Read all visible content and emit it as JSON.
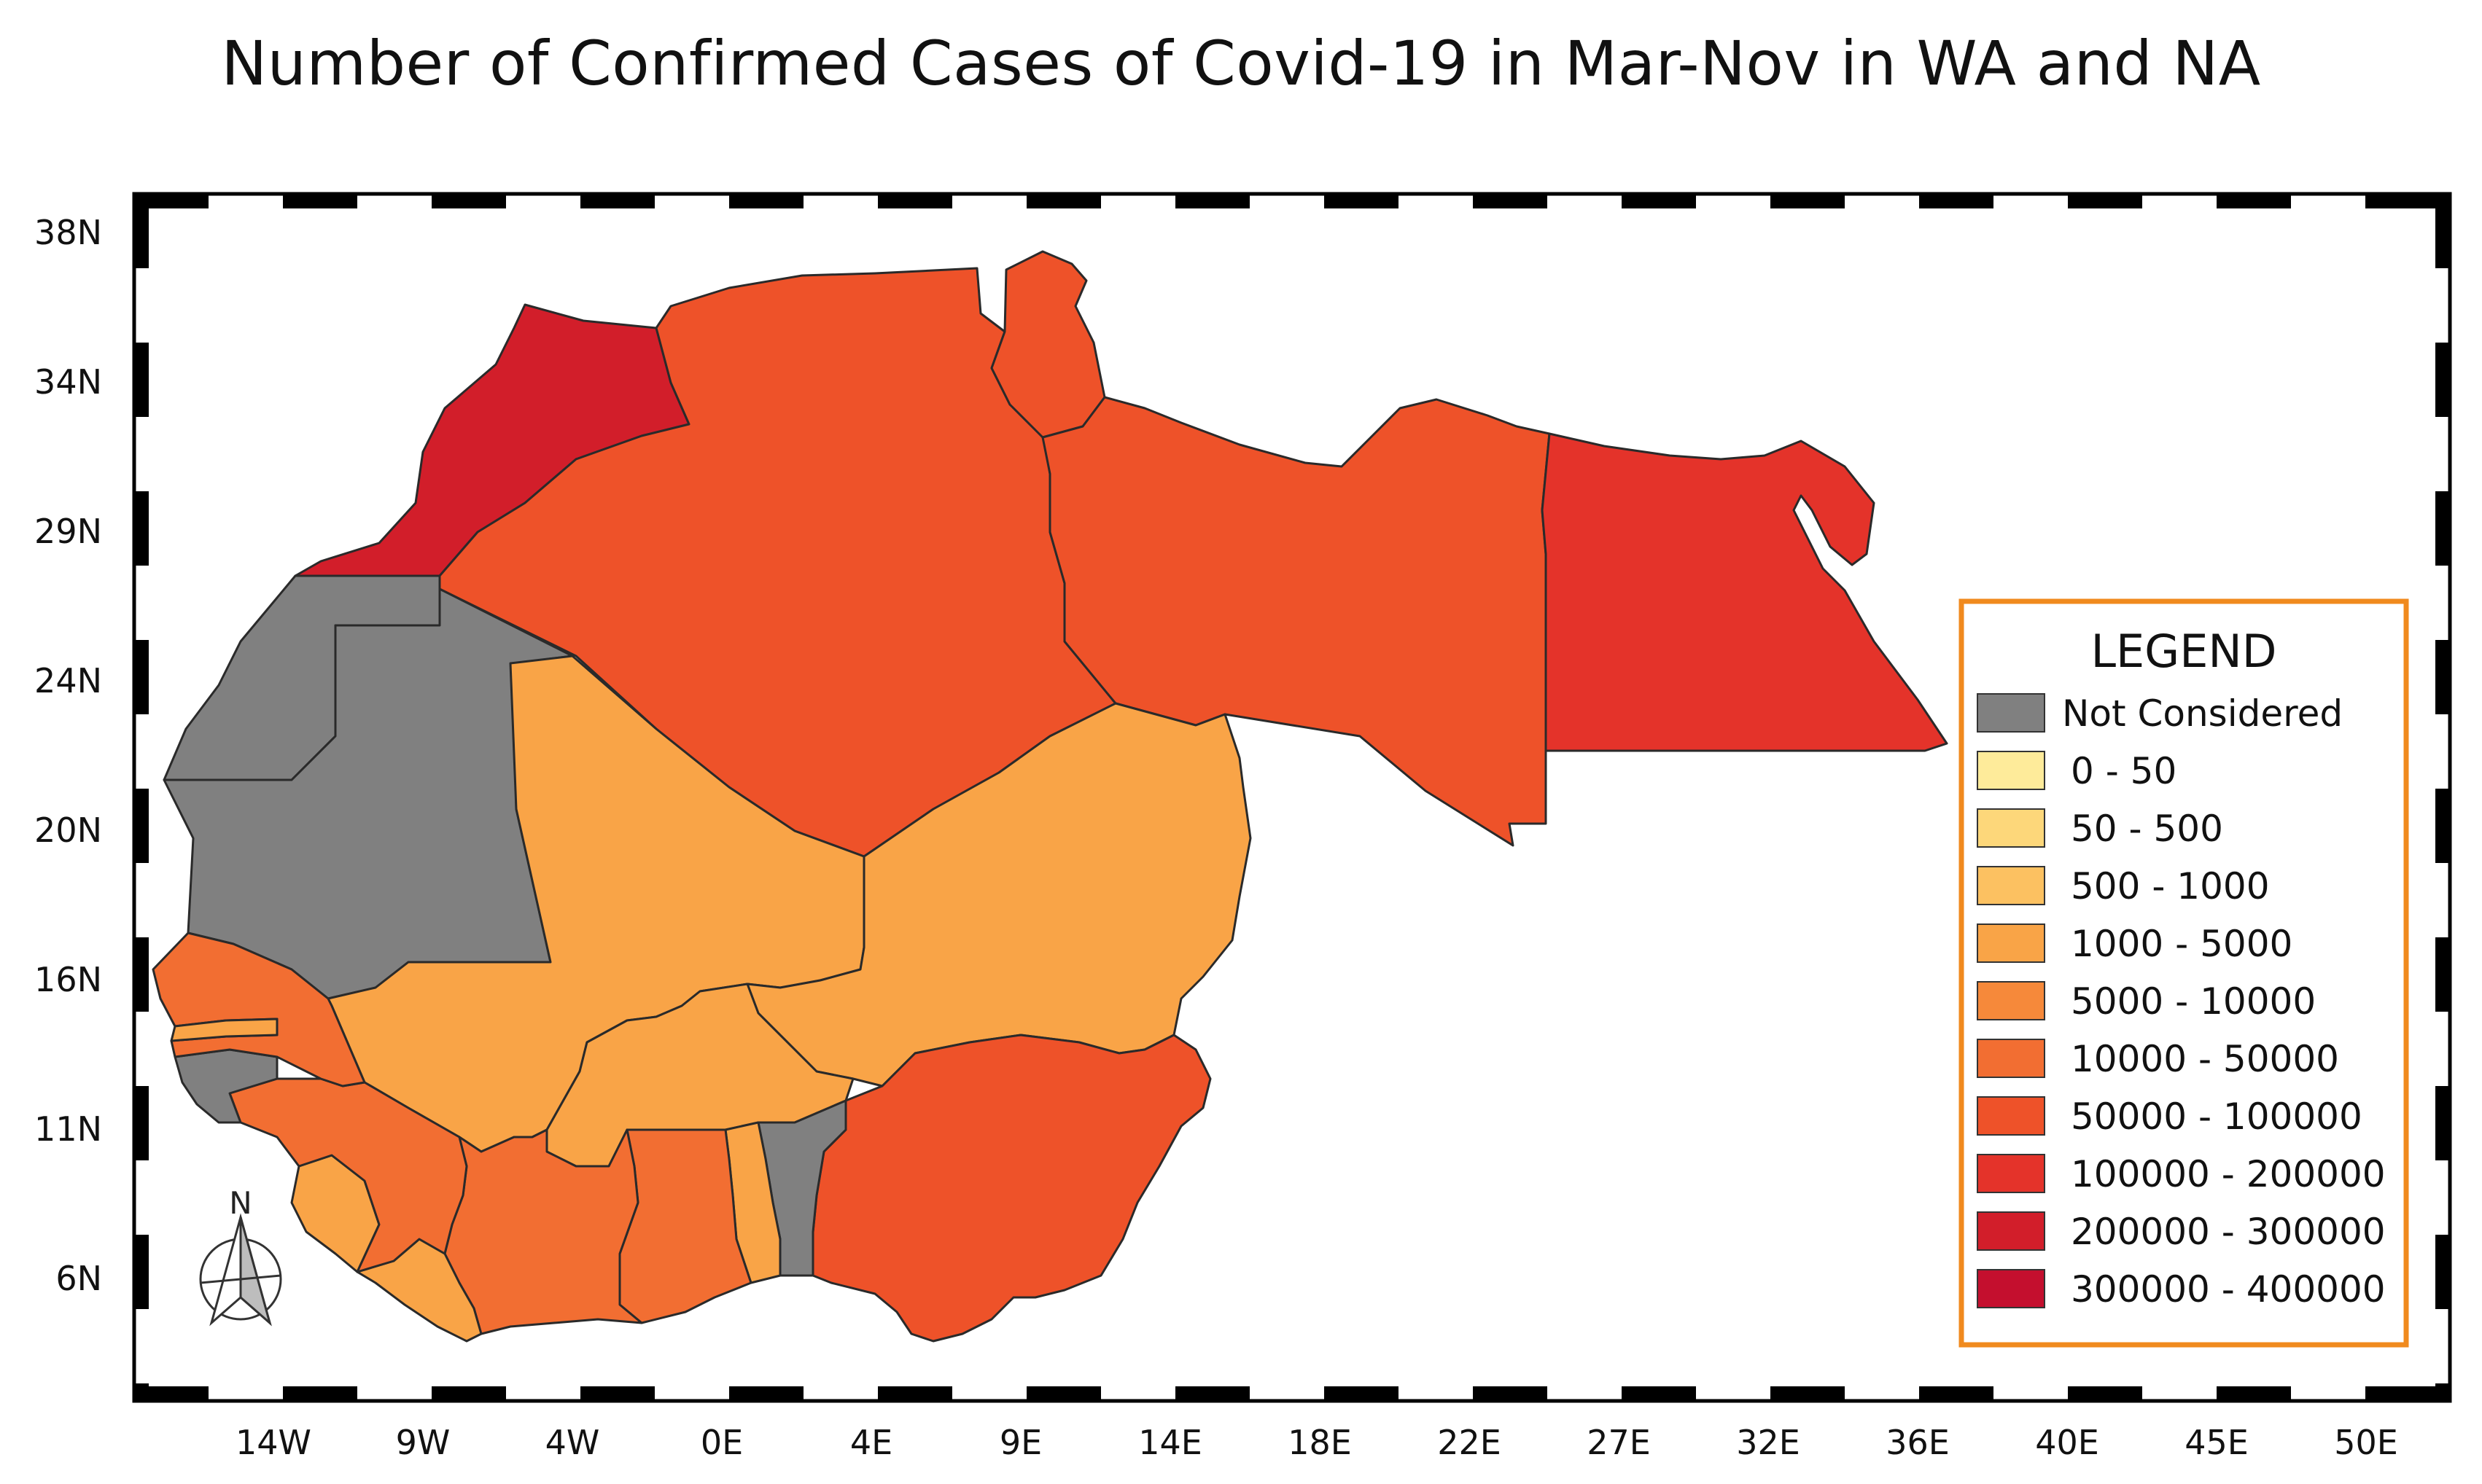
{
  "title": "Number of Confirmed Cases of Covid-19 in Mar-Nov in WA and NA",
  "axes": {
    "lat_labels": [
      "38N",
      "34N",
      "29N",
      "24N",
      "20N",
      "16N",
      "11N",
      "6N"
    ],
    "lon_labels": [
      "14W",
      "9W",
      "4W",
      "0E",
      "4E",
      "9E",
      "14E",
      "18E",
      "22E",
      "27E",
      "32E",
      "36E",
      "40E",
      "45E",
      "50E"
    ]
  },
  "north_arrow": {
    "label": "N"
  },
  "legend": {
    "title": "LEGEND",
    "border_color": "#F08A1E",
    "items": [
      {
        "label": "Not Considered",
        "color": "#808080"
      },
      {
        "label": "0 - 50",
        "color": "#FEEB9A"
      },
      {
        "label": "50 - 500",
        "color": "#FDD77A"
      },
      {
        "label": "500 - 1000",
        "color": "#FCC161"
      },
      {
        "label": "1000 - 5000",
        "color": "#F9A447"
      },
      {
        "label": "5000 - 10000",
        "color": "#F6893A"
      },
      {
        "label": "10000 - 50000",
        "color": "#F26E32"
      },
      {
        "label": "50000 - 100000",
        "color": "#EE5229"
      },
      {
        "label": "100000 - 200000",
        "color": "#E4332A"
      },
      {
        "label": "200000 - 300000",
        "color": "#D21E2A"
      },
      {
        "label": "300000 - 400000",
        "color": "#C40F2E"
      }
    ]
  },
  "regions": [
    {
      "name": "Morocco",
      "category": "200000 - 300000"
    },
    {
      "name": "Western Sahara",
      "category": "Not Considered"
    },
    {
      "name": "Mauritania",
      "category": "Not Considered"
    },
    {
      "name": "Algeria",
      "category": "50000 - 100000"
    },
    {
      "name": "Tunisia",
      "category": "50000 - 100000"
    },
    {
      "name": "Libya",
      "category": "50000 - 100000"
    },
    {
      "name": "Egypt",
      "category": "100000 - 200000"
    },
    {
      "name": "Mali",
      "category": "1000 - 5000"
    },
    {
      "name": "Niger",
      "category": "1000 - 5000"
    },
    {
      "name": "Burkina Faso",
      "category": "1000 - 5000"
    },
    {
      "name": "Nigeria",
      "category": "50000 - 100000"
    },
    {
      "name": "Senegal",
      "category": "10000 - 50000"
    },
    {
      "name": "Gambia",
      "category": "1000 - 5000"
    },
    {
      "name": "Guinea-Bissau",
      "category": "Not Considered"
    },
    {
      "name": "Guinea",
      "category": "10000 - 50000"
    },
    {
      "name": "Sierra Leone",
      "category": "1000 - 5000"
    },
    {
      "name": "Liberia",
      "category": "1000 - 5000"
    },
    {
      "name": "Cote d'Ivoire",
      "category": "10000 - 50000"
    },
    {
      "name": "Ghana",
      "category": "10000 - 50000"
    },
    {
      "name": "Togo",
      "category": "1000 - 5000"
    },
    {
      "name": "Benin",
      "category": "Not Considered"
    }
  ]
}
